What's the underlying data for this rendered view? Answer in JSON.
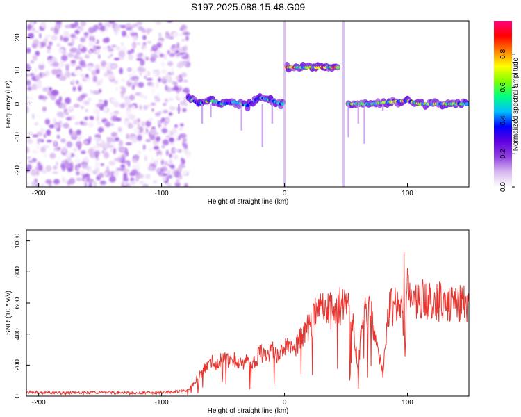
{
  "title": "S197.2025.088.15.48.G09",
  "chart_data": [
    {
      "type": "heatmap",
      "xlabel": "Height of straight line (km)",
      "ylabel": "Frequency (Hz)",
      "xlim": [
        -210,
        150
      ],
      "ylim": [
        -25,
        25
      ],
      "x_ticks": [
        -200,
        -100,
        0,
        100
      ],
      "x_tick_labels": [
        "-200",
        "-100",
        "0",
        "100"
      ],
      "y_ticks": [
        20,
        10,
        0,
        -10,
        -20
      ],
      "y_tick_labels": [
        "20",
        "10",
        "0",
        "-10",
        "-20"
      ],
      "colorbar": {
        "label": "Normalized spectral amplitude",
        "range": [
          0,
          1
        ],
        "ticks": [
          0.0,
          0.2,
          0.4,
          0.6,
          0.8
        ],
        "tick_labels": [
          "0.0",
          "0.2",
          "0.4",
          "0.6",
          "0.8"
        ],
        "colormap": [
          "#ffffff",
          "#d8b8f0",
          "#9040e0",
          "#6000e0",
          "#0000ff",
          "#00c0ff",
          "#00ff80",
          "#80ff00",
          "#ffff00",
          "#ff8000",
          "#ff0000",
          "#ff0080"
        ]
      },
      "features": [
        {
          "name": "noise",
          "x_range": [
            -210,
            -78
          ],
          "f_range": [
            -25,
            25
          ],
          "amplitude": 0.15
        },
        {
          "name": "track-1",
          "points": [
            [
              -78,
              2
            ],
            [
              -70,
              0
            ],
            [
              -60,
              1
            ],
            [
              -50,
              0
            ],
            [
              -40,
              0.5
            ],
            [
              -30,
              -0.5
            ],
            [
              -20,
              2
            ],
            [
              -10,
              1
            ],
            [
              -3,
              0
            ],
            [
              0,
              0
            ]
          ],
          "amplitude": 0.55
        },
        {
          "name": "track-2",
          "points": [
            [
              2,
              11
            ],
            [
              15,
              11
            ],
            [
              30,
              11
            ],
            [
              40,
              11
            ],
            [
              45,
              11
            ]
          ],
          "amplitude": 0.9
        },
        {
          "name": "track-3",
          "points": [
            [
              52,
              0
            ],
            [
              70,
              0
            ],
            [
              85,
              0.5
            ],
            [
              100,
              1
            ],
            [
              110,
              0
            ],
            [
              130,
              0
            ],
            [
              150,
              0
            ]
          ],
          "amplitude": 0.75
        }
      ]
    },
    {
      "type": "line",
      "xlabel": "Height of straight line (km)",
      "ylabel": "SNR (10 * v/v)",
      "xlim": [
        -210,
        150
      ],
      "ylim": [
        0,
        1070
      ],
      "x_ticks": [
        -200,
        -100,
        0,
        100
      ],
      "x_tick_labels": [
        "-200",
        "-100",
        "0",
        "100"
      ],
      "y_ticks": [
        0,
        200,
        400,
        600,
        800,
        1000
      ],
      "y_tick_labels": [
        "0",
        "200",
        "400",
        "600",
        "800",
        "1000"
      ],
      "series": [
        {
          "color": "#e8332e",
          "x": [
            -210,
            -180,
            -150,
            -120,
            -100,
            -85,
            -78,
            -72,
            -65,
            -60,
            -55,
            -50,
            -45,
            -40,
            -35,
            -30,
            -25,
            -20,
            -15,
            -10,
            -5,
            0,
            5,
            10,
            15,
            20,
            25,
            30,
            35,
            40,
            45,
            50,
            55,
            60,
            63,
            66,
            70,
            75,
            80,
            85,
            90,
            95,
            98,
            100,
            105,
            110,
            120,
            130,
            140,
            150
          ],
          "y": [
            25,
            20,
            25,
            20,
            25,
            30,
            40,
            100,
            180,
            230,
            200,
            260,
            220,
            240,
            200,
            260,
            210,
            280,
            250,
            300,
            260,
            300,
            350,
            320,
            400,
            450,
            520,
            550,
            560,
            540,
            580,
            560,
            550,
            150,
            520,
            540,
            550,
            300,
            150,
            560,
            590,
            580,
            300,
            750,
            600,
            620,
            600,
            610,
            600,
            600
          ]
        }
      ]
    }
  ]
}
